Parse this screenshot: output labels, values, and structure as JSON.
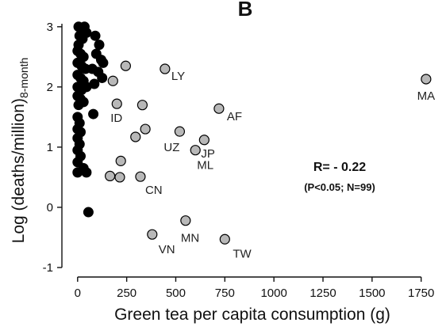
{
  "panel_label": "B",
  "chart_data": {
    "type": "scatter",
    "xlabel": "Green tea per capita  consumption (g)",
    "ylabel_main": "Log (deaths/million)",
    "ylabel_sub": "8-month",
    "xlim": [
      -80,
      1820
    ],
    "ylim": [
      -1,
      3.05
    ],
    "x_ticks": [
      0,
      250,
      500,
      750,
      1000,
      1250,
      1500,
      1750
    ],
    "x_tick_labels": [
      "0",
      "250",
      "500",
      "750",
      "1000",
      "1250",
      "1500",
      "1750"
    ],
    "y_ticks": [
      -1,
      0,
      1,
      2,
      3
    ],
    "y_tick_labels": [
      "-1",
      "0",
      "1",
      "2",
      "3"
    ],
    "stats": {
      "r": "R= - 0.22",
      "p": "(P<0.05; N=99)"
    },
    "series": [
      {
        "fill": "#000000",
        "points": [
          {
            "x": 5,
            "y": 3.0
          },
          {
            "x": 20,
            "y": 2.95
          },
          {
            "x": 35,
            "y": 3.0
          },
          {
            "x": 10,
            "y": 2.85
          },
          {
            "x": 25,
            "y": 2.8
          },
          {
            "x": 45,
            "y": 2.9
          },
          {
            "x": 90,
            "y": 2.85
          },
          {
            "x": 110,
            "y": 2.7
          },
          {
            "x": 95,
            "y": 2.55
          },
          {
            "x": 120,
            "y": 2.45
          },
          {
            "x": 130,
            "y": 2.4
          },
          {
            "x": 75,
            "y": 2.3
          },
          {
            "x": 105,
            "y": 2.25
          },
          {
            "x": 125,
            "y": 2.15
          },
          {
            "x": 85,
            "y": 2.05
          },
          {
            "x": 5,
            "y": 2.7
          },
          {
            "x": 0,
            "y": 2.6
          },
          {
            "x": 15,
            "y": 2.55
          },
          {
            "x": 30,
            "y": 2.5
          },
          {
            "x": 0,
            "y": 2.4
          },
          {
            "x": 20,
            "y": 2.35
          },
          {
            "x": 40,
            "y": 2.3
          },
          {
            "x": 0,
            "y": 2.2
          },
          {
            "x": 15,
            "y": 2.15
          },
          {
            "x": 30,
            "y": 2.1
          },
          {
            "x": 0,
            "y": 2.0
          },
          {
            "x": 20,
            "y": 1.95
          },
          {
            "x": 45,
            "y": 2.0
          },
          {
            "x": 0,
            "y": 1.85
          },
          {
            "x": 15,
            "y": 1.8
          },
          {
            "x": 30,
            "y": 1.75
          },
          {
            "x": 5,
            "y": 1.7
          },
          {
            "x": 80,
            "y": 1.55
          },
          {
            "x": 0,
            "y": 1.5
          },
          {
            "x": 10,
            "y": 1.4
          },
          {
            "x": 0,
            "y": 1.3
          },
          {
            "x": 15,
            "y": 1.25
          },
          {
            "x": 0,
            "y": 1.15
          },
          {
            "x": 10,
            "y": 1.05
          },
          {
            "x": 0,
            "y": 0.95
          },
          {
            "x": 15,
            "y": 0.85
          },
          {
            "x": 0,
            "y": 0.75
          },
          {
            "x": 30,
            "y": 0.65
          },
          {
            "x": 0,
            "y": 0.58
          },
          {
            "x": 45,
            "y": 0.58
          },
          {
            "x": 55,
            "y": -0.08
          }
        ]
      },
      {
        "fill": "#b8b8b8",
        "points": [
          {
            "x": 245,
            "y": 2.35,
            "label": ""
          },
          {
            "x": 180,
            "y": 2.1,
            "label": ""
          },
          {
            "x": 445,
            "y": 2.3,
            "label": "LY"
          },
          {
            "x": 200,
            "y": 1.72,
            "label": "ID"
          },
          {
            "x": 330,
            "y": 1.7,
            "label": ""
          },
          {
            "x": 720,
            "y": 1.64,
            "label": "AF"
          },
          {
            "x": 1775,
            "y": 2.13,
            "label": "MA"
          },
          {
            "x": 345,
            "y": 1.3,
            "label": ""
          },
          {
            "x": 295,
            "y": 1.17,
            "label": ""
          },
          {
            "x": 520,
            "y": 1.26,
            "label": "UZ"
          },
          {
            "x": 645,
            "y": 1.12,
            "label": "JP"
          },
          {
            "x": 600,
            "y": 0.95,
            "label": "ML"
          },
          {
            "x": 220,
            "y": 0.77,
            "label": ""
          },
          {
            "x": 165,
            "y": 0.52,
            "label": ""
          },
          {
            "x": 215,
            "y": 0.5,
            "label": ""
          },
          {
            "x": 320,
            "y": 0.51,
            "label": "CN"
          },
          {
            "x": 380,
            "y": -0.45,
            "label": "VN"
          },
          {
            "x": 550,
            "y": -0.22,
            "label": "MN"
          },
          {
            "x": 750,
            "y": -0.53,
            "label": "TW"
          }
        ]
      }
    ]
  }
}
